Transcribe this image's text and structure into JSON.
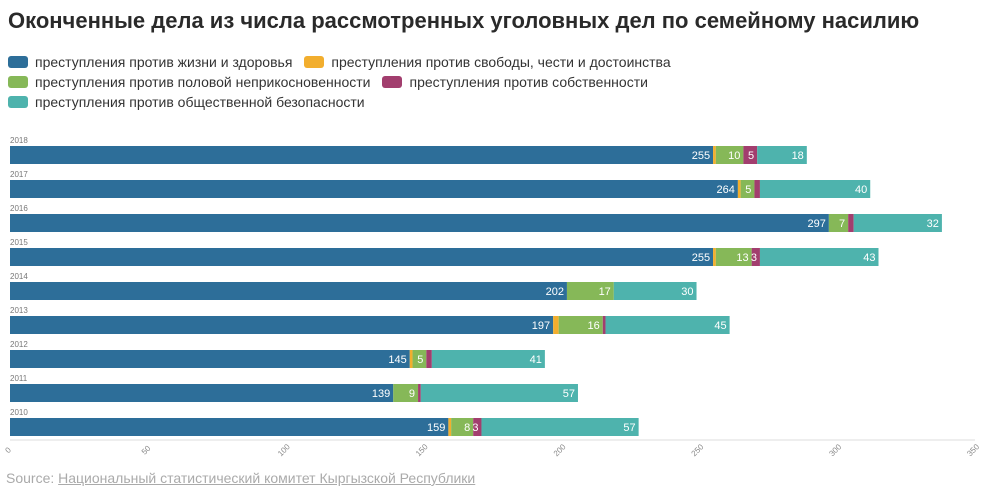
{
  "title": "Оконченные дела из числа рассмотренных уголовных дел по семейному насилию",
  "source": {
    "prefix": "Source: ",
    "link_text": "Национальный статистический комитет Кыргызской Республики"
  },
  "chart_data": {
    "type": "bar",
    "orientation": "horizontal",
    "stacked": true,
    "title": "Оконченные дела из числа рассмотренных уголовных дел по семейному насилию",
    "categories": [
      "2018",
      "2017",
      "2016",
      "2015",
      "2014",
      "2013",
      "2012",
      "2011",
      "2010"
    ],
    "series": [
      {
        "name": "преступления против жизни и здоровья",
        "color": "#2d6e99",
        "values": [
          255,
          264,
          297,
          255,
          202,
          197,
          145,
          139,
          159
        ]
      },
      {
        "name": "преступления против свободы, чести и достоинства",
        "color": "#f2ae2e",
        "values": [
          1,
          1,
          0,
          1,
          0,
          2,
          1,
          0,
          1
        ]
      },
      {
        "name": "преступления против половой неприкосновенности",
        "color": "#86b858",
        "values": [
          10,
          5,
          7,
          13,
          17,
          16,
          5,
          9,
          8
        ]
      },
      {
        "name": "преступления против собственности",
        "color": "#a23e6e",
        "values": [
          5,
          2,
          2,
          3,
          0,
          1,
          2,
          1,
          3
        ]
      },
      {
        "name": "преступления против общественной безопасности",
        "color": "#4eb3ad",
        "values": [
          18,
          40,
          32,
          43,
          30,
          45,
          41,
          57,
          57
        ]
      }
    ],
    "data_labels": [
      [
        "255",
        "",
        "10",
        "5",
        "18"
      ],
      [
        "264",
        "",
        "5",
        "",
        "40"
      ],
      [
        "297",
        "",
        "7",
        "",
        "32"
      ],
      [
        "255",
        "",
        "13",
        "3",
        "43"
      ],
      [
        "202",
        "",
        "17",
        "",
        "30"
      ],
      [
        "197",
        "",
        "16",
        "",
        "45"
      ],
      [
        "145",
        "",
        "5",
        "",
        "41"
      ],
      [
        "139",
        "",
        "9",
        "",
        "57"
      ],
      [
        "159",
        "",
        "8",
        "3",
        "57"
      ]
    ],
    "xlim": [
      0,
      350
    ],
    "x_ticks": [
      "0",
      "50",
      "100",
      "150",
      "200",
      "250",
      "300",
      "350"
    ],
    "legend_position": "top",
    "grid": false
  }
}
